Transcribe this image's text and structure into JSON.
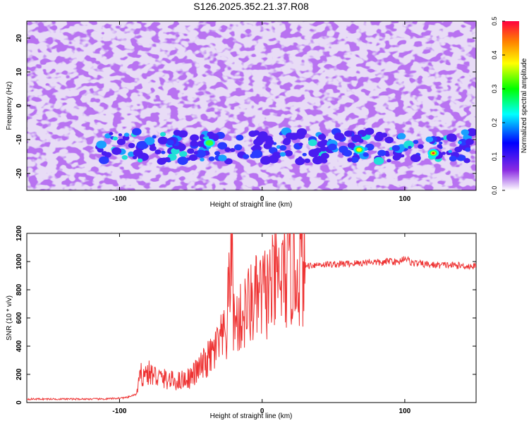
{
  "figure": {
    "title": "S126.2025.352.21.37.R08",
    "colors": {
      "snr_line": "#ee3333",
      "speckle": "#7a2be0",
      "speckle_light": "#c9a6f0",
      "background": "#ffffff"
    }
  },
  "chart_data": [
    {
      "type": "heatmap",
      "xlabel": "Height of straight line (km)",
      "ylabel": "Frequency (Hz)",
      "xlim": [
        -165,
        150
      ],
      "ylim": [
        -25,
        25
      ],
      "x_ticks": [
        -100,
        0,
        100
      ],
      "y_ticks": [
        -20,
        -10,
        0,
        10,
        20
      ],
      "colorbar": {
        "label": "Normalized spectral amplitude",
        "range": [
          0,
          0.5
        ],
        "ticks": [
          "0.0",
          "0.1",
          "0.2",
          "0.3",
          "0.4",
          "0.5"
        ],
        "colormap": "rainbow"
      },
      "features": [
        {
          "description": "horizontal band of elevated amplitude",
          "frequency_hz": -12,
          "x_range_km": [
            -115,
            150
          ]
        },
        {
          "peak_x_km": -37,
          "peak_freq_hz": -11,
          "amplitude": 0.25
        },
        {
          "peak_x_km": 68,
          "peak_freq_hz": -13,
          "amplitude": 0.4
        },
        {
          "peak_x_km": 120,
          "peak_freq_hz": -14,
          "amplitude": 0.5
        }
      ]
    },
    {
      "type": "line",
      "xlabel": "Height of straight line (km)",
      "ylabel": "SNR (10 * v/v)",
      "xlim": [
        -165,
        150
      ],
      "ylim": [
        0,
        1200
      ],
      "x_ticks": [
        -100,
        0,
        100
      ],
      "y_ticks": [
        0,
        200,
        400,
        600,
        800,
        1000,
        1200
      ],
      "series": [
        {
          "x": [
            -165,
            -150,
            -130,
            -110,
            -95,
            -88,
            -85,
            -80,
            -70,
            -60,
            -50,
            -45,
            -40,
            -35,
            -30,
            -25,
            -21,
            -20,
            -15,
            -10,
            -5,
            0,
            5,
            10,
            15,
            20,
            25,
            30,
            40,
            50,
            60,
            70,
            75,
            80,
            85,
            90,
            95,
            100,
            105,
            110,
            120,
            130,
            140,
            150
          ],
          "y": [
            25,
            25,
            25,
            25,
            35,
            60,
            200,
            210,
            170,
            150,
            180,
            230,
            280,
            340,
            420,
            480,
            1200,
            560,
            590,
            680,
            720,
            760,
            800,
            850,
            890,
            920,
            950,
            970,
            980,
            980,
            985,
            990,
            1000,
            995,
            990,
            1010,
            990,
            1030,
            990,
            985,
            975,
            975,
            970,
            965
          ]
        }
      ]
    }
  ]
}
